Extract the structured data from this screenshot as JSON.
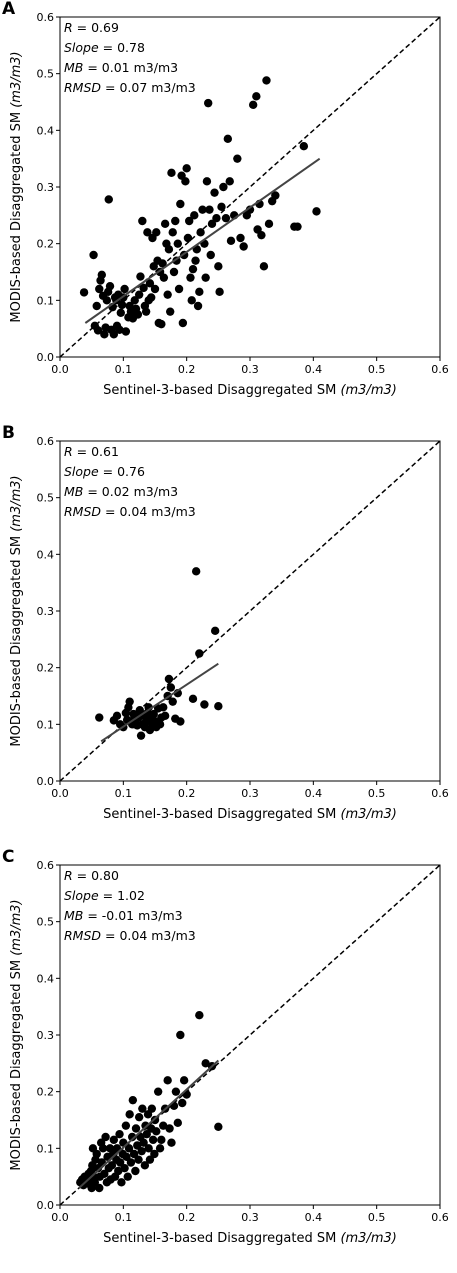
{
  "chart_data": [
    {
      "type": "scatter",
      "panel_label": "A",
      "xlabel_text": "Sentinel-3-based Disaggregated SM",
      "ylabel_text": "MODIS-based Disaggregated SM",
      "units_text": "m3/m3",
      "xlim": [
        0,
        0.6
      ],
      "ylim": [
        0,
        0.6
      ],
      "xticks": [
        "0.0",
        "0.1",
        "0.2",
        "0.3",
        "0.4",
        "0.5",
        "0.6"
      ],
      "yticks": [
        "0.0",
        "0.1",
        "0.2",
        "0.3",
        "0.4",
        "0.5",
        "0.6"
      ],
      "stats": [
        {
          "name": "R",
          "value": "= 0.69"
        },
        {
          "name": "Slope",
          "value": "= 0.78"
        },
        {
          "name": "MB",
          "value": "= 0.01 m3/m3"
        },
        {
          "name": "RMSD",
          "value": "= 0.07 m3/m3"
        }
      ],
      "reference_line": {
        "style": "dashed",
        "x": [
          0,
          0.6
        ],
        "y": [
          0,
          0.6
        ]
      },
      "fit_line": {
        "x": [
          0.04,
          0.41
        ],
        "y": [
          0.06,
          0.35
        ]
      },
      "points": [
        [
          0.038,
          0.114
        ],
        [
          0.053,
          0.18
        ],
        [
          0.055,
          0.055
        ],
        [
          0.058,
          0.09
        ],
        [
          0.06,
          0.047
        ],
        [
          0.062,
          0.12
        ],
        [
          0.064,
          0.135
        ],
        [
          0.066,
          0.145
        ],
        [
          0.068,
          0.108
        ],
        [
          0.07,
          0.04
        ],
        [
          0.072,
          0.052
        ],
        [
          0.074,
          0.1
        ],
        [
          0.076,
          0.115
        ],
        [
          0.077,
          0.278
        ],
        [
          0.079,
          0.125
        ],
        [
          0.081,
          0.048
        ],
        [
          0.083,
          0.088
        ],
        [
          0.085,
          0.04
        ],
        [
          0.087,
          0.105
        ],
        [
          0.089,
          0.1
        ],
        [
          0.09,
          0.055
        ],
        [
          0.092,
          0.11
        ],
        [
          0.094,
          0.048
        ],
        [
          0.096,
          0.078
        ],
        [
          0.098,
          0.092
        ],
        [
          0.1,
          0.105
        ],
        [
          0.102,
          0.12
        ],
        [
          0.104,
          0.045
        ],
        [
          0.108,
          0.07
        ],
        [
          0.11,
          0.09
        ],
        [
          0.112,
          0.08
        ],
        [
          0.115,
          0.068
        ],
        [
          0.118,
          0.1
        ],
        [
          0.12,
          0.085
        ],
        [
          0.123,
          0.075
        ],
        [
          0.125,
          0.11
        ],
        [
          0.127,
          0.142
        ],
        [
          0.13,
          0.24
        ],
        [
          0.132,
          0.122
        ],
        [
          0.134,
          0.09
        ],
        [
          0.136,
          0.08
        ],
        [
          0.138,
          0.22
        ],
        [
          0.14,
          0.1
        ],
        [
          0.142,
          0.13
        ],
        [
          0.144,
          0.105
        ],
        [
          0.146,
          0.21
        ],
        [
          0.148,
          0.16
        ],
        [
          0.15,
          0.12
        ],
        [
          0.152,
          0.22
        ],
        [
          0.154,
          0.17
        ],
        [
          0.156,
          0.06
        ],
        [
          0.158,
          0.15
        ],
        [
          0.16,
          0.058
        ],
        [
          0.162,
          0.165
        ],
        [
          0.164,
          0.14
        ],
        [
          0.166,
          0.235
        ],
        [
          0.168,
          0.2
        ],
        [
          0.17,
          0.11
        ],
        [
          0.172,
          0.19
        ],
        [
          0.174,
          0.08
        ],
        [
          0.176,
          0.325
        ],
        [
          0.178,
          0.22
        ],
        [
          0.18,
          0.15
        ],
        [
          0.182,
          0.24
        ],
        [
          0.184,
          0.17
        ],
        [
          0.186,
          0.2
        ],
        [
          0.188,
          0.12
        ],
        [
          0.19,
          0.27
        ],
        [
          0.192,
          0.32
        ],
        [
          0.194,
          0.06
        ],
        [
          0.196,
          0.18
        ],
        [
          0.198,
          0.31
        ],
        [
          0.2,
          0.333
        ],
        [
          0.202,
          0.21
        ],
        [
          0.204,
          0.24
        ],
        [
          0.206,
          0.14
        ],
        [
          0.208,
          0.1
        ],
        [
          0.21,
          0.155
        ],
        [
          0.212,
          0.25
        ],
        [
          0.214,
          0.17
        ],
        [
          0.216,
          0.19
        ],
        [
          0.218,
          0.09
        ],
        [
          0.22,
          0.115
        ],
        [
          0.222,
          0.22
        ],
        [
          0.225,
          0.26
        ],
        [
          0.228,
          0.2
        ],
        [
          0.23,
          0.14
        ],
        [
          0.232,
          0.31
        ],
        [
          0.234,
          0.448
        ],
        [
          0.236,
          0.26
        ],
        [
          0.238,
          0.18
        ],
        [
          0.24,
          0.235
        ],
        [
          0.244,
          0.29
        ],
        [
          0.247,
          0.245
        ],
        [
          0.25,
          0.16
        ],
        [
          0.252,
          0.115
        ],
        [
          0.255,
          0.265
        ],
        [
          0.258,
          0.3
        ],
        [
          0.262,
          0.245
        ],
        [
          0.265,
          0.385
        ],
        [
          0.268,
          0.31
        ],
        [
          0.27,
          0.205
        ],
        [
          0.275,
          0.25
        ],
        [
          0.28,
          0.35
        ],
        [
          0.285,
          0.21
        ],
        [
          0.29,
          0.195
        ],
        [
          0.295,
          0.25
        ],
        [
          0.3,
          0.26
        ],
        [
          0.305,
          0.445
        ],
        [
          0.31,
          0.46
        ],
        [
          0.312,
          0.225
        ],
        [
          0.315,
          0.27
        ],
        [
          0.318,
          0.215
        ],
        [
          0.322,
          0.16
        ],
        [
          0.326,
          0.488
        ],
        [
          0.33,
          0.235
        ],
        [
          0.335,
          0.275
        ],
        [
          0.34,
          0.285
        ],
        [
          0.37,
          0.23
        ],
        [
          0.375,
          0.23
        ],
        [
          0.385,
          0.372
        ],
        [
          0.405,
          0.257
        ]
      ]
    },
    {
      "type": "scatter",
      "panel_label": "B",
      "xlabel_text": "Sentinel-3-based Disaggregated SM",
      "ylabel_text": "MODIS-based Disaggregated SM",
      "units_text": "m3/m3",
      "xlim": [
        0,
        0.6
      ],
      "ylim": [
        0,
        0.6
      ],
      "xticks": [
        "0.0",
        "0.1",
        "0.2",
        "0.3",
        "0.4",
        "0.5",
        "0.6"
      ],
      "yticks": [
        "0.0",
        "0.1",
        "0.2",
        "0.3",
        "0.4",
        "0.5",
        "0.6"
      ],
      "stats": [
        {
          "name": "R",
          "value": "= 0.61"
        },
        {
          "name": "Slope",
          "value": "= 0.76"
        },
        {
          "name": "MB",
          "value": "= 0.02 m3/m3"
        },
        {
          "name": "RMSD",
          "value": "= 0.04 m3/m3"
        }
      ],
      "reference_line": {
        "style": "dashed",
        "x": [
          0,
          0.6
        ],
        "y": [
          0,
          0.6
        ]
      },
      "fit_line": {
        "x": [
          0.065,
          0.25
        ],
        "y": [
          0.07,
          0.207
        ]
      },
      "points": [
        [
          0.062,
          0.112
        ],
        [
          0.085,
          0.107
        ],
        [
          0.09,
          0.115
        ],
        [
          0.095,
          0.1
        ],
        [
          0.1,
          0.095
        ],
        [
          0.104,
          0.12
        ],
        [
          0.106,
          0.108
        ],
        [
          0.108,
          0.13
        ],
        [
          0.11,
          0.14
        ],
        [
          0.112,
          0.105
        ],
        [
          0.114,
          0.1
        ],
        [
          0.116,
          0.118
        ],
        [
          0.118,
          0.1
        ],
        [
          0.12,
          0.11
        ],
        [
          0.122,
          0.098
        ],
        [
          0.124,
          0.112
        ],
        [
          0.126,
          0.125
        ],
        [
          0.128,
          0.08
        ],
        [
          0.13,
          0.1
        ],
        [
          0.132,
          0.115
        ],
        [
          0.134,
          0.095
        ],
        [
          0.136,
          0.105
        ],
        [
          0.138,
          0.12
        ],
        [
          0.14,
          0.13
        ],
        [
          0.142,
          0.09
        ],
        [
          0.144,
          0.11
        ],
        [
          0.146,
          0.1
        ],
        [
          0.148,
          0.118
        ],
        [
          0.15,
          0.105
        ],
        [
          0.152,
          0.095
        ],
        [
          0.155,
          0.128
        ],
        [
          0.158,
          0.1
        ],
        [
          0.16,
          0.112
        ],
        [
          0.163,
          0.13
        ],
        [
          0.166,
          0.115
        ],
        [
          0.17,
          0.15
        ],
        [
          0.172,
          0.18
        ],
        [
          0.175,
          0.165
        ],
        [
          0.178,
          0.14
        ],
        [
          0.182,
          0.11
        ],
        [
          0.186,
          0.155
        ],
        [
          0.19,
          0.105
        ],
        [
          0.21,
          0.145
        ],
        [
          0.215,
          0.37
        ],
        [
          0.22,
          0.225
        ],
        [
          0.228,
          0.135
        ],
        [
          0.245,
          0.265
        ],
        [
          0.25,
          0.132
        ]
      ]
    },
    {
      "type": "scatter",
      "panel_label": "C",
      "xlabel_text": "Sentinel-3-based Disaggregated SM",
      "ylabel_text": "MODIS-based Disaggregated SM",
      "units_text": "m3/m3",
      "xlim": [
        0,
        0.6
      ],
      "ylim": [
        0,
        0.6
      ],
      "xticks": [
        "0.0",
        "0.1",
        "0.2",
        "0.3",
        "0.4",
        "0.5",
        "0.6"
      ],
      "yticks": [
        "0.0",
        "0.1",
        "0.2",
        "0.3",
        "0.4",
        "0.5",
        "0.6"
      ],
      "stats": [
        {
          "name": "R",
          "value": "= 0.80"
        },
        {
          "name": "Slope",
          "value": "= 1.02"
        },
        {
          "name": "MB",
          "value": "= -0.01 m3/m3"
        },
        {
          "name": "RMSD",
          "value": "= 0.04 m3/m3"
        }
      ],
      "reference_line": {
        "style": "dashed",
        "x": [
          0,
          0.6
        ],
        "y": [
          0,
          0.6
        ]
      },
      "fit_line": {
        "x": [
          0.03,
          0.25
        ],
        "y": [
          0.03,
          0.255
        ]
      },
      "points": [
        [
          0.032,
          0.04
        ],
        [
          0.035,
          0.045
        ],
        [
          0.037,
          0.035
        ],
        [
          0.039,
          0.05
        ],
        [
          0.041,
          0.042
        ],
        [
          0.043,
          0.038
        ],
        [
          0.045,
          0.055
        ],
        [
          0.047,
          0.045
        ],
        [
          0.049,
          0.06
        ],
        [
          0.05,
          0.03
        ],
        [
          0.051,
          0.07
        ],
        [
          0.052,
          0.1
        ],
        [
          0.053,
          0.05
        ],
        [
          0.055,
          0.04
        ],
        [
          0.056,
          0.08
        ],
        [
          0.058,
          0.09
        ],
        [
          0.06,
          0.065
        ],
        [
          0.062,
          0.03
        ],
        [
          0.063,
          0.05
        ],
        [
          0.065,
          0.11
        ],
        [
          0.066,
          0.075
        ],
        [
          0.068,
          0.1
        ],
        [
          0.07,
          0.055
        ],
        [
          0.072,
          0.12
        ],
        [
          0.074,
          0.04
        ],
        [
          0.075,
          0.085
        ],
        [
          0.077,
          0.065
        ],
        [
          0.079,
          0.1
        ],
        [
          0.08,
          0.045
        ],
        [
          0.082,
          0.07
        ],
        [
          0.084,
          0.09
        ],
        [
          0.085,
          0.115
        ],
        [
          0.087,
          0.05
        ],
        [
          0.089,
          0.08
        ],
        [
          0.09,
          0.1
        ],
        [
          0.092,
          0.06
        ],
        [
          0.094,
          0.125
        ],
        [
          0.095,
          0.075
        ],
        [
          0.097,
          0.04
        ],
        [
          0.099,
          0.09
        ],
        [
          0.1,
          0.11
        ],
        [
          0.102,
          0.065
        ],
        [
          0.104,
          0.14
        ],
        [
          0.105,
          0.085
        ],
        [
          0.107,
          0.05
        ],
        [
          0.109,
          0.1
        ],
        [
          0.11,
          0.16
        ],
        [
          0.112,
          0.075
        ],
        [
          0.114,
          0.12
        ],
        [
          0.115,
          0.185
        ],
        [
          0.117,
          0.09
        ],
        [
          0.119,
          0.06
        ],
        [
          0.12,
          0.135
        ],
        [
          0.122,
          0.105
        ],
        [
          0.124,
          0.08
        ],
        [
          0.125,
          0.155
        ],
        [
          0.127,
          0.12
        ],
        [
          0.129,
          0.095
        ],
        [
          0.13,
          0.17
        ],
        [
          0.132,
          0.11
        ],
        [
          0.134,
          0.07
        ],
        [
          0.135,
          0.14
        ],
        [
          0.137,
          0.125
        ],
        [
          0.139,
          0.16
        ],
        [
          0.14,
          0.1
        ],
        [
          0.142,
          0.08
        ],
        [
          0.144,
          0.135
        ],
        [
          0.145,
          0.17
        ],
        [
          0.147,
          0.115
        ],
        [
          0.149,
          0.09
        ],
        [
          0.15,
          0.15
        ],
        [
          0.152,
          0.13
        ],
        [
          0.155,
          0.2
        ],
        [
          0.158,
          0.1
        ],
        [
          0.16,
          0.115
        ],
        [
          0.163,
          0.14
        ],
        [
          0.166,
          0.17
        ],
        [
          0.17,
          0.22
        ],
        [
          0.173,
          0.135
        ],
        [
          0.176,
          0.11
        ],
        [
          0.18,
          0.175
        ],
        [
          0.183,
          0.2
        ],
        [
          0.186,
          0.145
        ],
        [
          0.19,
          0.3
        ],
        [
          0.193,
          0.18
        ],
        [
          0.196,
          0.22
        ],
        [
          0.2,
          0.195
        ],
        [
          0.22,
          0.335
        ],
        [
          0.23,
          0.25
        ],
        [
          0.24,
          0.245
        ],
        [
          0.25,
          0.138
        ]
      ]
    }
  ]
}
